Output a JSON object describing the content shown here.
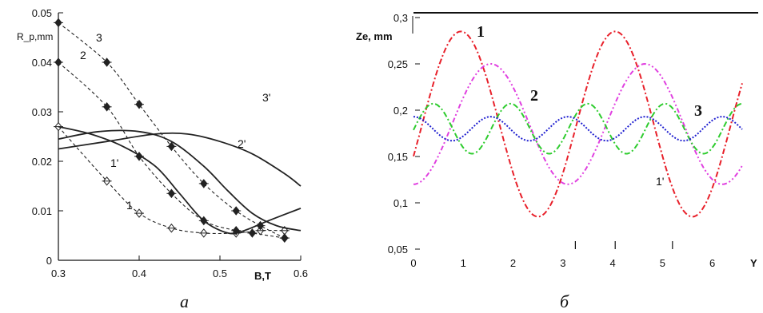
{
  "chart_data": [
    {
      "type": "line",
      "caption": "a",
      "xlabel": "B,T",
      "ylabel": "R_p,mm",
      "xlim": [
        0.3,
        0.6
      ],
      "ylim": [
        0,
        0.05
      ],
      "x_ticks": [
        "0.3",
        "0.4",
        "0.5",
        "0.6"
      ],
      "y_ticks": [
        "0",
        "0.01",
        "0.02",
        "0.03",
        "0.04",
        "0.05"
      ],
      "grid": false,
      "series": [
        {
          "name": "1",
          "style": "dashed-markers",
          "marker": "open",
          "x": [
            0.3,
            0.36,
            0.4,
            0.44,
            0.48,
            0.52,
            0.55,
            0.58
          ],
          "y": [
            0.027,
            0.016,
            0.0095,
            0.0065,
            0.0055,
            0.0055,
            0.006,
            0.006
          ]
        },
        {
          "name": "2",
          "style": "dashed-markers",
          "marker": "filled",
          "x": [
            0.3,
            0.36,
            0.4,
            0.44,
            0.48,
            0.52,
            0.54,
            0.58
          ],
          "y": [
            0.04,
            0.031,
            0.021,
            0.0135,
            0.008,
            0.006,
            0.0055,
            0.0045
          ]
        },
        {
          "name": "3",
          "style": "dashed-markers",
          "marker": "filled",
          "x": [
            0.3,
            0.36,
            0.4,
            0.44,
            0.48,
            0.52,
            0.55,
            0.58
          ],
          "y": [
            0.048,
            0.04,
            0.0315,
            0.023,
            0.0155,
            0.01,
            0.007,
            0.0045
          ]
        },
        {
          "name": "1'",
          "style": "solid",
          "x": [
            0.3,
            0.34,
            0.38,
            0.42,
            0.45,
            0.48,
            0.51,
            0.53,
            0.56,
            0.6
          ],
          "y": [
            0.027,
            0.0255,
            0.023,
            0.019,
            0.0135,
            0.008,
            0.0055,
            0.006,
            0.008,
            0.0105
          ]
        },
        {
          "name": "2'",
          "style": "solid",
          "x": [
            0.3,
            0.35,
            0.4,
            0.44,
            0.48,
            0.51,
            0.54,
            0.57,
            0.6
          ],
          "y": [
            0.0245,
            0.026,
            0.026,
            0.024,
            0.019,
            0.014,
            0.0095,
            0.007,
            0.006
          ]
        },
        {
          "name": "3'",
          "style": "solid",
          "x": [
            0.3,
            0.36,
            0.42,
            0.46,
            0.5,
            0.54,
            0.58,
            0.6
          ],
          "y": [
            0.0225,
            0.024,
            0.0255,
            0.0255,
            0.024,
            0.0215,
            0.0175,
            0.015
          ]
        }
      ]
    },
    {
      "type": "line",
      "caption": "б",
      "xlabel": "Y",
      "ylabel": "Ze, mm",
      "xlim": [
        0,
        6.6
      ],
      "ylim": [
        0.05,
        0.3
      ],
      "x_ticks": [
        "0",
        "1",
        "2",
        "3",
        "4",
        "5",
        "6"
      ],
      "y_ticks": [
        "0,05",
        "0,1",
        "0,15",
        "0,2",
        "0,25",
        "0,3"
      ],
      "grid": false,
      "series": [
        {
          "name": "1",
          "color": "#e8202a",
          "style": "dash-dot",
          "center": 0.185,
          "amplitude": 0.1,
          "period": 3.1,
          "peak_at": 0.95
        },
        {
          "name": "1'",
          "color": "#e040e0",
          "style": "dash-dot-dot",
          "center": 0.185,
          "amplitude": 0.065,
          "period": 3.1,
          "peak_at": 1.55
        },
        {
          "name": "2",
          "color": "#2ecc2e",
          "style": "dash-dot",
          "center": 0.18,
          "amplitude": 0.027,
          "period": 1.55,
          "peak_at": 0.4
        },
        {
          "name": "3",
          "color": "#2020d0",
          "style": "dotted",
          "center": 0.18,
          "amplitude": 0.013,
          "period": 1.55,
          "peak_at": 0.0
        }
      ],
      "labels": [
        "1",
        "1'",
        "2",
        "3"
      ]
    }
  ]
}
